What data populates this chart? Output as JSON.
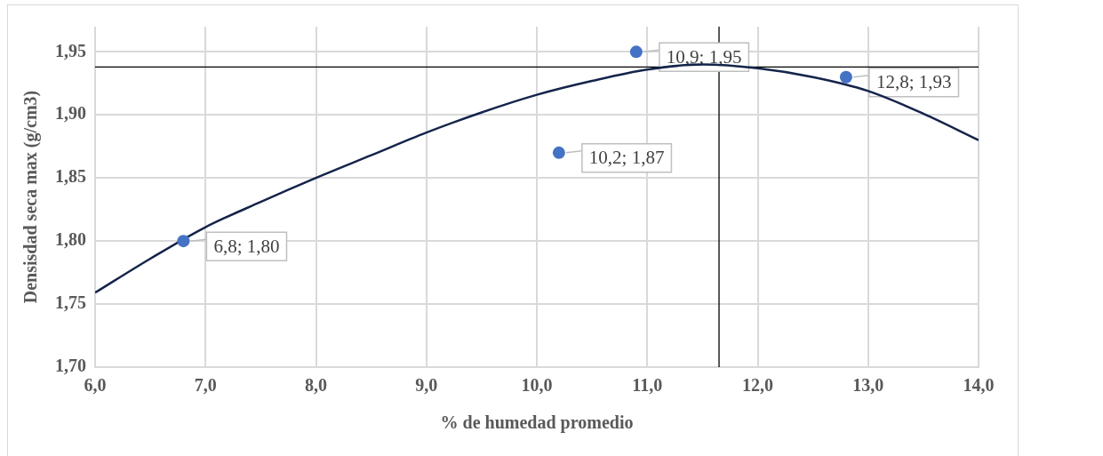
{
  "chart_data": {
    "type": "scatter",
    "xlabel": "% de humedad promedio",
    "ylabel": "Densisdad seca max (g/cm3)",
    "xlim": [
      6,
      14
    ],
    "ylim": [
      1.7,
      1.97
    ],
    "xticks": [
      {
        "value": 6,
        "label": "6,0"
      },
      {
        "value": 7,
        "label": "7,0"
      },
      {
        "value": 8,
        "label": "8,0"
      },
      {
        "value": 9,
        "label": "9,0"
      },
      {
        "value": 10,
        "label": "10,0"
      },
      {
        "value": 11,
        "label": "11,0"
      },
      {
        "value": 12,
        "label": "12,0"
      },
      {
        "value": 13,
        "label": "13,0"
      },
      {
        "value": 14,
        "label": "14,0"
      }
    ],
    "yticks": [
      {
        "value": 1.7,
        "label": "1,70"
      },
      {
        "value": 1.75,
        "label": "1,75"
      },
      {
        "value": 1.8,
        "label": "1,80"
      },
      {
        "value": 1.85,
        "label": "1,85"
      },
      {
        "value": 1.9,
        "label": "1,90"
      },
      {
        "value": 1.95,
        "label": "1,95"
      }
    ],
    "grid": true,
    "legend": false,
    "marker": "circle",
    "series": [
      {
        "type": "scatter",
        "color": "#4472c4",
        "x": [
          6.8,
          10.2,
          10.9,
          12.8
        ],
        "values": [
          1.8,
          1.87,
          1.95,
          1.93
        ],
        "value_labels": [
          "6,8; 1,80",
          "10,2; 1,87",
          "10,9; 1,95",
          "12,8; 1,93"
        ]
      },
      {
        "type": "line",
        "color": "#14244a",
        "marker": "none",
        "line_style": "solid",
        "x": [
          6,
          6.5,
          7,
          7.5,
          8,
          8.5,
          9,
          9.5,
          10,
          10.5,
          11,
          11.5,
          12,
          12.5,
          13,
          13.5,
          14
        ],
        "values": [
          1.759,
          1.786,
          1.811,
          1.831,
          1.85,
          1.868,
          1.886,
          1.902,
          1.916,
          1.927,
          1.936,
          1.94,
          1.937,
          1.93,
          1.919,
          1.901,
          1.88
        ]
      }
    ],
    "ref_lines": [
      {
        "axis": "y",
        "value": 1.938,
        "color": "#000000"
      },
      {
        "axis": "x",
        "value": 11.65,
        "color": "#000000"
      }
    ]
  }
}
